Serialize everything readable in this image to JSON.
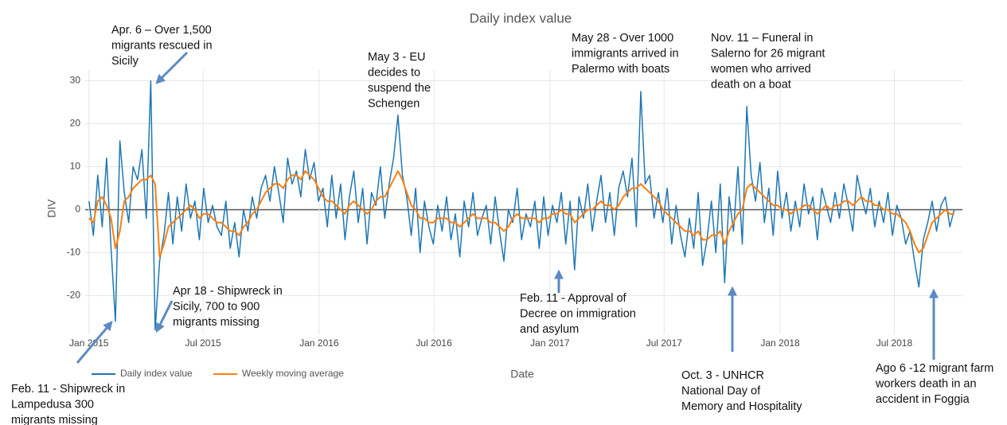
{
  "chart_data": {
    "type": "line",
    "title": "Daily index value",
    "x_label": "Date",
    "y_label": "DIV",
    "xlim": [
      -6,
      1385
    ],
    "xticks": [
      {
        "value": 0,
        "label": "Jan 2015"
      },
      {
        "value": 181,
        "label": "Jul 2015"
      },
      {
        "value": 365,
        "label": "Jan 2016"
      },
      {
        "value": 547,
        "label": "Jul 2016"
      },
      {
        "value": 731,
        "label": "Jan 2017"
      },
      {
        "value": 912,
        "label": "Jul 2017"
      },
      {
        "value": 1096,
        "label": "Jan 2018"
      },
      {
        "value": 1277,
        "label": "Jul 2018"
      }
    ],
    "ylim": [
      -29,
      32.5
    ],
    "yticks": [
      -20,
      -10,
      0,
      10,
      20,
      30
    ],
    "grid": true,
    "legend": "bottom-left",
    "x": [
      0,
      7,
      14,
      21,
      28,
      35,
      42,
      49,
      56,
      63,
      70,
      77,
      84,
      91,
      98,
      105,
      112,
      119,
      126,
      133,
      140,
      147,
      154,
      161,
      168,
      175,
      182,
      189,
      196,
      203,
      210,
      217,
      224,
      231,
      238,
      245,
      252,
      259,
      266,
      273,
      280,
      287,
      294,
      301,
      308,
      315,
      322,
      329,
      336,
      343,
      350,
      357,
      364,
      371,
      378,
      385,
      392,
      399,
      406,
      413,
      420,
      427,
      434,
      441,
      448,
      455,
      462,
      469,
      476,
      483,
      490,
      497,
      504,
      511,
      518,
      525,
      532,
      539,
      546,
      553,
      560,
      567,
      574,
      581,
      588,
      595,
      602,
      609,
      616,
      623,
      630,
      637,
      644,
      651,
      658,
      665,
      672,
      679,
      686,
      693,
      700,
      707,
      714,
      721,
      728,
      735,
      742,
      749,
      756,
      763,
      770,
      777,
      784,
      791,
      798,
      805,
      812,
      819,
      826,
      833,
      840,
      847,
      854,
      861,
      868,
      875,
      882,
      889,
      896,
      903,
      910,
      917,
      924,
      931,
      938,
      945,
      952,
      959,
      966,
      973,
      980,
      987,
      994,
      1001,
      1008,
      1015,
      1022,
      1029,
      1036,
      1043,
      1050,
      1057,
      1064,
      1071,
      1078,
      1085,
      1092,
      1099,
      1106,
      1113,
      1120,
      1127,
      1134,
      1141,
      1148,
      1155,
      1162,
      1169,
      1176,
      1183,
      1190,
      1197,
      1204,
      1211,
      1218,
      1225,
      1232,
      1239,
      1246,
      1253,
      1260,
      1267,
      1274,
      1281,
      1288,
      1295,
      1302,
      1309,
      1316,
      1323,
      1330,
      1337,
      1344,
      1351,
      1358,
      1365,
      1372
    ],
    "series": [
      {
        "name": "Daily index value",
        "color": "#1f77b4",
        "width": 1.5,
        "values": [
          2,
          -6,
          8,
          -4,
          12,
          -9,
          -26,
          16,
          4,
          -3,
          10,
          7,
          14,
          -2,
          30,
          -28,
          -12,
          -6,
          4,
          -8,
          3,
          -5,
          6,
          -2,
          2,
          -7,
          5,
          -3,
          1,
          -4,
          -6,
          2,
          -9,
          -3,
          -11,
          0,
          -5,
          3,
          -2,
          5,
          8,
          2,
          10,
          4,
          -3,
          12,
          6,
          9,
          3,
          14,
          7,
          11,
          2,
          5,
          -4,
          8,
          -2,
          6,
          -7,
          3,
          9,
          -3,
          5,
          -8,
          4,
          1,
          10,
          -2,
          6,
          12,
          22,
          8,
          3,
          -6,
          5,
          -10,
          2,
          -4,
          -8,
          1,
          -5,
          3,
          -7,
          -1,
          -11,
          2,
          -4,
          4,
          -6,
          -2,
          1,
          -8,
          3,
          -5,
          -12,
          0,
          -3,
          5,
          -7,
          -1,
          -4,
          2,
          -9,
          3,
          -6,
          1,
          -3,
          4,
          -8,
          2,
          -14,
          3,
          -2,
          6,
          -5,
          2,
          8,
          -3,
          4,
          -6,
          5,
          9,
          3,
          12,
          -4,
          27.5,
          6,
          8,
          -2,
          4,
          -3,
          5,
          -8,
          1,
          -6,
          -11,
          -2,
          -9,
          4,
          -13,
          -7,
          2,
          -10,
          6,
          -17,
          3,
          -5,
          10,
          -8,
          24,
          8,
          2,
          11,
          -3,
          5,
          -6,
          9,
          -2,
          4,
          -5,
          2,
          -4,
          6,
          -1,
          3,
          -7,
          5,
          1,
          -3,
          4,
          -2,
          6,
          1,
          -5,
          8,
          3,
          -1,
          5,
          -4,
          2,
          -3,
          4,
          -6,
          1,
          -2,
          -8,
          -5,
          -12,
          -18,
          -7,
          -3,
          2,
          -5,
          1,
          3,
          -4,
          0
        ]
      },
      {
        "name": "Weekly moving average",
        "color": "#ff7f0e",
        "width": 2,
        "values": [
          -2,
          -3,
          2,
          3,
          1,
          -2,
          -9,
          -5,
          2,
          3,
          5,
          6,
          7,
          7,
          8,
          6,
          -11,
          -8,
          -4,
          -3,
          -2,
          -1,
          0,
          1,
          0,
          -2,
          -1,
          -1,
          -2,
          -3,
          -3,
          -4,
          -5,
          -5,
          -6,
          -4,
          -3,
          -1,
          0,
          2,
          4,
          5,
          6,
          6,
          5,
          7,
          8,
          8,
          7,
          9,
          8,
          7,
          5,
          3,
          2,
          2,
          1,
          0,
          -1,
          1,
          2,
          1,
          0,
          -1,
          0,
          2,
          3,
          3,
          5,
          7,
          9,
          7,
          4,
          1,
          0,
          -2,
          -2,
          -3,
          -3,
          -2,
          -2,
          -2,
          -3,
          -3,
          -4,
          -3,
          -2,
          -1,
          -2,
          -2,
          -2,
          -3,
          -3,
          -4,
          -5,
          -4,
          -2,
          -1,
          -2,
          -2,
          -2,
          -2,
          -3,
          -2,
          -2,
          -1,
          -1,
          0,
          -1,
          -1,
          -3,
          -2,
          -1,
          0,
          0,
          1,
          2,
          1,
          1,
          0,
          1,
          3,
          4,
          5,
          5,
          6,
          5,
          4,
          3,
          2,
          0,
          -1,
          -2,
          -3,
          -4,
          -5,
          -5,
          -6,
          -5,
          -7,
          -7,
          -6,
          -6,
          -5,
          -8,
          -5,
          -3,
          -1,
          0,
          5,
          6,
          5,
          4,
          3,
          2,
          1,
          1,
          0,
          0,
          -1,
          0,
          0,
          1,
          1,
          0,
          -1,
          0,
          1,
          0,
          1,
          1,
          2,
          2,
          1,
          2,
          3,
          2,
          2,
          1,
          1,
          0,
          0,
          -1,
          -1,
          -2,
          -3,
          -5,
          -8,
          -10,
          -9,
          -6,
          -3,
          -2,
          -1,
          0,
          -1,
          -1
        ]
      }
    ],
    "annotations": [
      {
        "lines": [
          "Apr. 6 –  Over 1,500",
          "migrants rescued in",
          "Sicily"
        ]
      },
      {
        "lines": [
          "May 3 -  EU",
          "decides to",
          "suspend the",
          "Schengen"
        ]
      },
      {
        "lines": [
          "May 28 - Over 1000",
          "immigrants arrived in",
          "Palermo with boats"
        ]
      },
      {
        "lines": [
          "Nov. 11 – Funeral in",
          "Salerno  for 26 migrant",
          "women who arrived",
          "death on a boat"
        ]
      },
      {
        "lines": [
          "Apr 18 - Shipwreck in",
          "Sicily, 700 to 900",
          "migrants missing"
        ]
      },
      {
        "lines": [
          "Feb. 11 - Approval of",
          "Decree on immigration",
          "and asylum"
        ]
      },
      {
        "lines": [
          "Feb. 11 - Shipwreck in",
          "Lampedusa 300",
          "migrants missing"
        ]
      },
      {
        "lines": [
          "Oct. 3 - UNHCR",
          "National Day of",
          "Memory and Hospitality"
        ]
      },
      {
        "lines": [
          "Ago 6 -12 migrant farm",
          "workers death  in an",
          "accident in Foggia"
        ]
      }
    ]
  }
}
